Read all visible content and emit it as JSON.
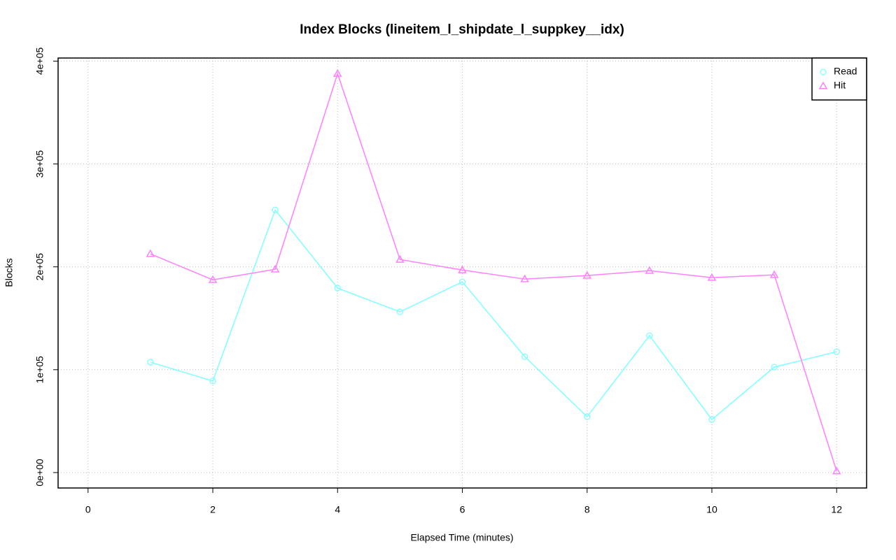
{
  "chart_data": {
    "type": "line",
    "title": "Index Blocks (lineitem_l_shipdate_l_suppkey__idx)",
    "x_label": "Elapsed Time (minutes)",
    "y_label": "Blocks",
    "x": [
      1,
      2,
      3,
      4,
      5,
      6,
      7,
      8,
      9,
      10,
      11,
      12
    ],
    "series": [
      {
        "name": "Read",
        "color": "#80ffff",
        "marker": "circle",
        "values": [
          107300,
          89000,
          255300,
          179300,
          156200,
          185400,
          112700,
          54300,
          133100,
          51600,
          102500,
          117500
        ]
      },
      {
        "name": "Hit",
        "color": "#ff80ff",
        "marker": "triangle",
        "values": [
          212600,
          187400,
          197600,
          387800,
          207100,
          196900,
          188100,
          191500,
          196300,
          189500,
          192200,
          1400
        ]
      }
    ],
    "xlim": [
      -0.48,
      12.48
    ],
    "ylim": [
      -15000,
      403000
    ],
    "xticks": [
      0,
      2,
      4,
      6,
      8,
      10,
      12
    ],
    "yticks": [
      {
        "value": 0,
        "label": "0e+00"
      },
      {
        "value": 100000,
        "label": "1e+05"
      },
      {
        "value": 200000,
        "label": "2e+05"
      },
      {
        "value": 300000,
        "label": "3e+05"
      },
      {
        "value": 400000,
        "label": "4e+05"
      }
    ],
    "grid": true,
    "legend_position": "top-right"
  }
}
